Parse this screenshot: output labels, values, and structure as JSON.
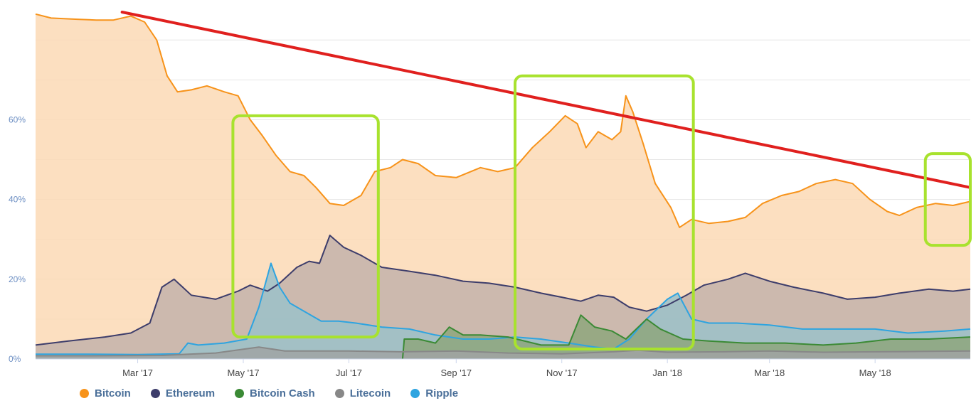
{
  "chart_data": {
    "type": "area",
    "x_ticks": [
      "Mar '17",
      "May '17",
      "Jul '17",
      "Sep '17",
      "Nov '17",
      "Jan '18",
      "Mar '18",
      "May '18"
    ],
    "y_ticks": [
      "0%",
      "20%",
      "40%",
      "60%"
    ],
    "ylim": [
      0,
      87
    ],
    "grid": true,
    "legend_position": "bottom-left",
    "series": [
      {
        "name": "Bitcoin",
        "color": "#f7931a",
        "fill": "#fbd9b5",
        "points": [
          [
            "2017-01-01",
            86.5
          ],
          [
            "2017-01-10",
            85.5
          ],
          [
            "2017-01-25",
            85.2
          ],
          [
            "2017-02-05",
            85.0
          ],
          [
            "2017-02-15",
            85.0
          ],
          [
            "2017-02-25",
            86.0
          ],
          [
            "2017-03-05",
            84.5
          ],
          [
            "2017-03-12",
            80.0
          ],
          [
            "2017-03-18",
            71.0
          ],
          [
            "2017-03-24",
            67.0
          ],
          [
            "2017-04-01",
            67.5
          ],
          [
            "2017-04-10",
            68.5
          ],
          [
            "2017-04-20",
            67.0
          ],
          [
            "2017-04-28",
            66.0
          ],
          [
            "2017-05-05",
            60.0
          ],
          [
            "2017-05-12",
            56.0
          ],
          [
            "2017-05-20",
            51.0
          ],
          [
            "2017-05-28",
            47.0
          ],
          [
            "2017-06-05",
            46.0
          ],
          [
            "2017-06-12",
            43.0
          ],
          [
            "2017-06-20",
            39.0
          ],
          [
            "2017-06-28",
            38.5
          ],
          [
            "2017-07-08",
            41.0
          ],
          [
            "2017-07-16",
            47.0
          ],
          [
            "2017-07-25",
            48.0
          ],
          [
            "2017-08-01",
            50.0
          ],
          [
            "2017-08-10",
            49.0
          ],
          [
            "2017-08-20",
            46.0
          ],
          [
            "2017-09-01",
            45.5
          ],
          [
            "2017-09-15",
            48.0
          ],
          [
            "2017-09-25",
            47.0
          ],
          [
            "2017-10-05",
            48.0
          ],
          [
            "2017-10-15",
            53.0
          ],
          [
            "2017-10-25",
            57.0
          ],
          [
            "2017-11-03",
            61.0
          ],
          [
            "2017-11-10",
            59.0
          ],
          [
            "2017-11-15",
            53.0
          ],
          [
            "2017-11-22",
            57.0
          ],
          [
            "2017-11-30",
            55.0
          ],
          [
            "2017-12-05",
            57.0
          ],
          [
            "2017-12-08",
            66.0
          ],
          [
            "2017-12-12",
            62.0
          ],
          [
            "2017-12-18",
            54.0
          ],
          [
            "2017-12-25",
            44.0
          ],
          [
            "2018-01-03",
            38.0
          ],
          [
            "2018-01-08",
            33.0
          ],
          [
            "2018-01-15",
            35.0
          ],
          [
            "2018-01-25",
            34.0
          ],
          [
            "2018-02-05",
            34.5
          ],
          [
            "2018-02-15",
            35.5
          ],
          [
            "2018-02-25",
            39.0
          ],
          [
            "2018-03-08",
            41.0
          ],
          [
            "2018-03-18",
            42.0
          ],
          [
            "2018-03-28",
            44.0
          ],
          [
            "2018-04-08",
            45.0
          ],
          [
            "2018-04-18",
            44.0
          ],
          [
            "2018-04-28",
            40.0
          ],
          [
            "2018-05-08",
            37.0
          ],
          [
            "2018-05-15",
            36.0
          ],
          [
            "2018-05-25",
            38.0
          ],
          [
            "2018-06-05",
            39.0
          ],
          [
            "2018-06-15",
            38.5
          ],
          [
            "2018-06-25",
            39.5
          ]
        ]
      },
      {
        "name": "Ethereum",
        "color": "#3d3d6b",
        "fill": "#c3b3aa",
        "points": [
          [
            "2017-01-01",
            3.5
          ],
          [
            "2017-01-20",
            4.5
          ],
          [
            "2017-02-10",
            5.5
          ],
          [
            "2017-02-25",
            6.5
          ],
          [
            "2017-03-08",
            9.0
          ],
          [
            "2017-03-15",
            18.0
          ],
          [
            "2017-03-22",
            20.0
          ],
          [
            "2017-04-01",
            16.0
          ],
          [
            "2017-04-15",
            15.0
          ],
          [
            "2017-04-28",
            17.0
          ],
          [
            "2017-05-05",
            18.5
          ],
          [
            "2017-05-15",
            17.0
          ],
          [
            "2017-05-22",
            19.0
          ],
          [
            "2017-06-01",
            23.0
          ],
          [
            "2017-06-08",
            24.5
          ],
          [
            "2017-06-14",
            24.0
          ],
          [
            "2017-06-20",
            31.0
          ],
          [
            "2017-06-28",
            28.0
          ],
          [
            "2017-07-08",
            26.0
          ],
          [
            "2017-07-20",
            23.0
          ],
          [
            "2017-08-05",
            22.0
          ],
          [
            "2017-08-20",
            21.0
          ],
          [
            "2017-09-05",
            19.5
          ],
          [
            "2017-09-20",
            19.0
          ],
          [
            "2017-10-05",
            18.0
          ],
          [
            "2017-10-20",
            16.5
          ],
          [
            "2017-11-01",
            15.5
          ],
          [
            "2017-11-12",
            14.5
          ],
          [
            "2017-11-22",
            16.0
          ],
          [
            "2017-12-01",
            15.5
          ],
          [
            "2017-12-10",
            13.0
          ],
          [
            "2017-12-20",
            12.0
          ],
          [
            "2018-01-01",
            13.5
          ],
          [
            "2018-01-12",
            16.0
          ],
          [
            "2018-01-22",
            18.5
          ],
          [
            "2018-02-05",
            20.0
          ],
          [
            "2018-02-15",
            21.5
          ],
          [
            "2018-03-01",
            19.5
          ],
          [
            "2018-03-15",
            18.0
          ],
          [
            "2018-04-01",
            16.5
          ],
          [
            "2018-04-15",
            15.0
          ],
          [
            "2018-05-01",
            15.5
          ],
          [
            "2018-05-15",
            16.5
          ],
          [
            "2018-06-01",
            17.5
          ],
          [
            "2018-06-15",
            17.0
          ],
          [
            "2018-06-25",
            17.5
          ]
        ]
      },
      {
        "name": "Ripple",
        "color": "#2ea4e0",
        "fill": "#9bc1c9",
        "points": [
          [
            "2017-01-01",
            1.2
          ],
          [
            "2017-02-01",
            1.2
          ],
          [
            "2017-03-01",
            1.1
          ],
          [
            "2017-03-25",
            1.3
          ],
          [
            "2017-03-30",
            4.0
          ],
          [
            "2017-04-05",
            3.5
          ],
          [
            "2017-04-20",
            4.0
          ],
          [
            "2017-05-03",
            5.0
          ],
          [
            "2017-05-10",
            13.0
          ],
          [
            "2017-05-17",
            24.0
          ],
          [
            "2017-05-22",
            18.0
          ],
          [
            "2017-05-28",
            14.0
          ],
          [
            "2017-06-05",
            12.0
          ],
          [
            "2017-06-15",
            9.5
          ],
          [
            "2017-06-25",
            9.5
          ],
          [
            "2017-07-05",
            9.0
          ],
          [
            "2017-07-20",
            8.0
          ],
          [
            "2017-08-05",
            7.5
          ],
          [
            "2017-08-20",
            6.0
          ],
          [
            "2017-09-05",
            5.0
          ],
          [
            "2017-09-20",
            5.0
          ],
          [
            "2017-10-05",
            5.5
          ],
          [
            "2017-10-20",
            5.0
          ],
          [
            "2017-11-05",
            4.0
          ],
          [
            "2017-11-20",
            3.0
          ],
          [
            "2017-12-01",
            2.5
          ],
          [
            "2017-12-10",
            5.0
          ],
          [
            "2017-12-20",
            10.0
          ],
          [
            "2018-01-01",
            15.0
          ],
          [
            "2018-01-07",
            16.5
          ],
          [
            "2018-01-15",
            10.0
          ],
          [
            "2018-01-25",
            9.0
          ],
          [
            "2018-02-10",
            9.0
          ],
          [
            "2018-03-01",
            8.5
          ],
          [
            "2018-03-20",
            7.5
          ],
          [
            "2018-04-10",
            7.5
          ],
          [
            "2018-05-01",
            7.5
          ],
          [
            "2018-05-20",
            6.5
          ],
          [
            "2018-06-10",
            7.0
          ],
          [
            "2018-06-25",
            7.5
          ]
        ]
      },
      {
        "name": "Bitcoin Cash",
        "color": "#3b8a35",
        "fill": "#8ea67d",
        "points": [
          [
            "2017-08-01",
            0.0
          ],
          [
            "2017-08-02",
            5.0
          ],
          [
            "2017-08-10",
            5.0
          ],
          [
            "2017-08-20",
            4.0
          ],
          [
            "2017-08-28",
            8.0
          ],
          [
            "2017-09-05",
            6.0
          ],
          [
            "2017-09-15",
            6.0
          ],
          [
            "2017-10-01",
            5.5
          ],
          [
            "2017-10-20",
            3.5
          ],
          [
            "2017-11-05",
            3.5
          ],
          [
            "2017-11-12",
            11.0
          ],
          [
            "2017-11-20",
            8.0
          ],
          [
            "2017-11-30",
            7.0
          ],
          [
            "2017-12-08",
            5.0
          ],
          [
            "2017-12-20",
            10.0
          ],
          [
            "2017-12-28",
            7.5
          ],
          [
            "2018-01-10",
            5.0
          ],
          [
            "2018-01-25",
            4.5
          ],
          [
            "2018-02-15",
            4.0
          ],
          [
            "2018-03-10",
            4.0
          ],
          [
            "2018-04-01",
            3.5
          ],
          [
            "2018-04-20",
            4.0
          ],
          [
            "2018-05-10",
            5.0
          ],
          [
            "2018-06-01",
            5.0
          ],
          [
            "2018-06-25",
            5.5
          ]
        ]
      },
      {
        "name": "Litecoin",
        "color": "#888888",
        "fill": "#a0a3a3",
        "points": [
          [
            "2017-01-01",
            0.8
          ],
          [
            "2017-02-01",
            0.8
          ],
          [
            "2017-03-15",
            0.9
          ],
          [
            "2017-04-15",
            1.5
          ],
          [
            "2017-05-10",
            3.0
          ],
          [
            "2017-05-25",
            2.0
          ],
          [
            "2017-07-01",
            2.0
          ],
          [
            "2017-08-01",
            1.8
          ],
          [
            "2017-09-01",
            2.0
          ],
          [
            "2017-10-01",
            1.5
          ],
          [
            "2017-11-01",
            1.3
          ],
          [
            "2017-12-01",
            1.8
          ],
          [
            "2017-12-15",
            2.2
          ],
          [
            "2018-01-01",
            1.7
          ],
          [
            "2018-02-01",
            1.8
          ],
          [
            "2018-03-01",
            2.0
          ],
          [
            "2018-04-01",
            1.7
          ],
          [
            "2018-05-01",
            1.8
          ],
          [
            "2018-06-01",
            1.9
          ],
          [
            "2018-06-25",
            2.0
          ]
        ]
      }
    ],
    "annotations": {
      "trend_line": {
        "color": "#e0201e",
        "from": [
          "2017-02-20",
          87.0
        ],
        "to": [
          "2018-06-25",
          43.0
        ]
      },
      "highlight_boxes": [
        {
          "color": "#a8e22e",
          "x_from": "2017-04-25",
          "x_to": "2017-07-18",
          "y_from": 5.5,
          "y_to": 61.0
        },
        {
          "color": "#a8e22e",
          "x_from": "2017-10-05",
          "x_to": "2018-01-16",
          "y_from": 2.5,
          "y_to": 71.0
        },
        {
          "color": "#a8e22e",
          "x_from": "2018-05-30",
          "x_to": "2018-06-25",
          "y_from": 28.5,
          "y_to": 51.5
        }
      ]
    }
  },
  "legend": {
    "items": [
      {
        "label": "Bitcoin",
        "color": "#f7931a"
      },
      {
        "label": "Ethereum",
        "color": "#3d3d6b"
      },
      {
        "label": "Bitcoin Cash",
        "color": "#3b8a35"
      },
      {
        "label": "Litecoin",
        "color": "#888888"
      },
      {
        "label": "Ripple",
        "color": "#2ea4e0"
      }
    ]
  }
}
